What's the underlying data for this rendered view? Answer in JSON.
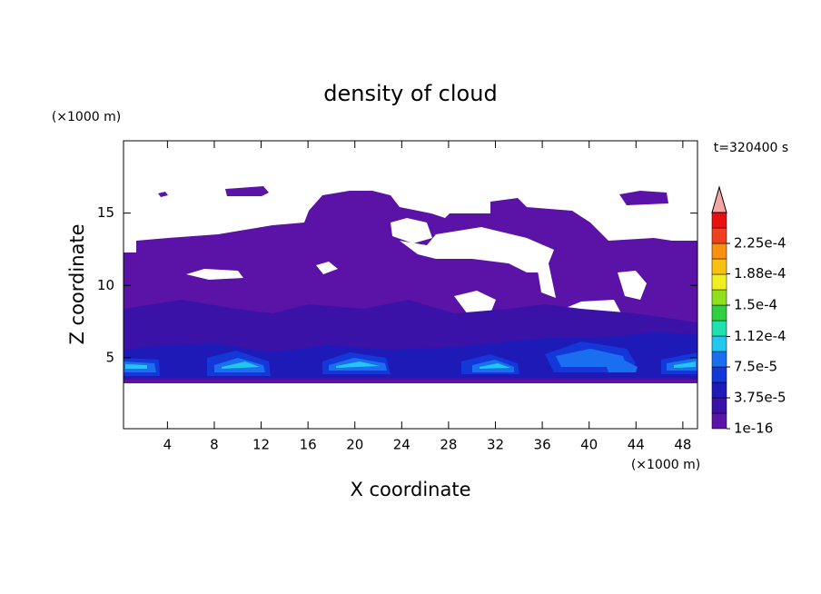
{
  "chart_data": {
    "type": "contour",
    "title": "density of cloud",
    "x_label": "X coordinate",
    "y_label": "Z coordinate",
    "x_unit": "(×1000 m)",
    "y_unit": "(×1000 m)",
    "time_label": "t=320400 s",
    "xlim": [
      0.25,
      49.25
    ],
    "ylim": [
      0.1,
      20
    ],
    "xticks": [
      4,
      8,
      12,
      16,
      20,
      24,
      28,
      32,
      36,
      40,
      44,
      48
    ],
    "yticks": [
      5,
      10,
      15
    ],
    "clim": [
      0,
      0.0002625
    ],
    "levels": [
      0,
      1.875e-05,
      3.75e-05,
      5.625e-05,
      7.5e-05,
      9.375e-05,
      0.0001125,
      0.00013125,
      0.00015,
      0.00016875,
      0.0001875,
      0.00020625,
      0.000225,
      0.00024375
    ],
    "colors": [
      "#5b12a6",
      "#3a12a8",
      "#1d1ab8",
      "#1438d8",
      "#1a6ef0",
      "#20c8f0",
      "#20e0b0",
      "#30d040",
      "#90e020",
      "#f0f020",
      "#f8c010",
      "#f89010",
      "#f04020",
      "#e81010"
    ],
    "colorbar_ticks": [
      {
        "value": 1e-16,
        "label": "1e-16"
      },
      {
        "value": 3.75e-05,
        "label": "3.75e-5"
      },
      {
        "value": 7.5e-05,
        "label": "7.5e-5"
      },
      {
        "value": 0.000112,
        "label": "1.12e-4"
      },
      {
        "value": 0.00015,
        "label": "1.5e-4"
      },
      {
        "value": 0.000188,
        "label": "1.88e-4"
      },
      {
        "value": 0.000225,
        "label": "2.25e-4"
      }
    ]
  }
}
